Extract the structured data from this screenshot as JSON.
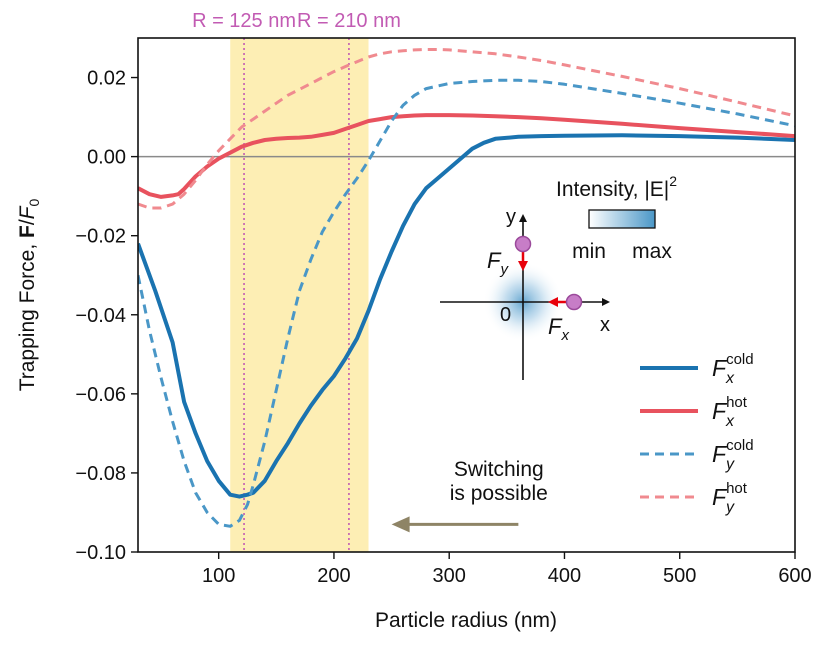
{
  "chart_data": {
    "type": "line",
    "xlabel": "Particle radius (nm)",
    "ylabel": "Trapping Force, F/F0",
    "ylabel_parts": {
      "prefix": "Trapping Force, ",
      "bold": "F",
      "slash": "/",
      "base": "F",
      "sub": "0"
    },
    "xlim": [
      30,
      600
    ],
    "ylim": [
      -0.1,
      0.03
    ],
    "x_ticks": [
      100,
      200,
      300,
      400,
      500,
      600
    ],
    "x_tick_labels": [
      "100",
      "200",
      "300",
      "400",
      "500",
      "600"
    ],
    "y_ticks": [
      0.02,
      0.0,
      -0.02,
      -0.04,
      -0.06,
      -0.08,
      -0.1
    ],
    "y_tick_labels": [
      "0.02",
      "0.00",
      "−0.02",
      "−0.04",
      "−0.06",
      "−0.08",
      "−0.10"
    ],
    "shaded_region": {
      "x_start": 110,
      "x_end": 230,
      "color": "#fdeeb4"
    },
    "markers": [
      {
        "x": 122,
        "label": "R = 125 nm",
        "color": "#c25bb3"
      },
      {
        "x": 213,
        "label": "R = 210 nm",
        "color": "#c25bb3"
      }
    ],
    "zero_line": 0.0,
    "series": [
      {
        "name": "Fx cold",
        "symbol": "F",
        "sub": "x",
        "sup": "cold",
        "color": "#1a73b0",
        "style": "solid",
        "width": 4,
        "x": [
          30,
          45,
          60,
          70,
          80,
          90,
          100,
          110,
          118,
          125,
          130,
          140,
          150,
          160,
          170,
          180,
          190,
          200,
          210,
          220,
          230,
          240,
          250,
          260,
          270,
          280,
          290,
          300,
          310,
          320,
          330,
          340,
          360,
          380,
          400,
          450,
          500,
          550,
          600
        ],
        "y": [
          -0.022,
          -0.034,
          -0.047,
          -0.062,
          -0.07,
          -0.077,
          -0.082,
          -0.0855,
          -0.086,
          -0.0855,
          -0.085,
          -0.082,
          -0.077,
          -0.0725,
          -0.0675,
          -0.063,
          -0.059,
          -0.0555,
          -0.051,
          -0.046,
          -0.039,
          -0.031,
          -0.024,
          -0.0175,
          -0.012,
          -0.008,
          -0.0055,
          -0.003,
          -0.0005,
          0.002,
          0.0035,
          0.0045,
          0.005,
          0.0052,
          0.0053,
          0.0054,
          0.0052,
          0.0048,
          0.0042
        ]
      },
      {
        "name": "Fx hot",
        "symbol": "F",
        "sub": "x",
        "sup": "hot",
        "color": "#e8525e",
        "style": "solid",
        "width": 4,
        "x": [
          30,
          40,
          50,
          60,
          65,
          70,
          80,
          90,
          100,
          110,
          120,
          130,
          140,
          150,
          160,
          170,
          180,
          190,
          200,
          210,
          220,
          230,
          240,
          250,
          260,
          270,
          280,
          290,
          300,
          320,
          340,
          360,
          380,
          400,
          450,
          500,
          550,
          600
        ],
        "y": [
          -0.008,
          -0.0095,
          -0.0102,
          -0.0098,
          -0.0095,
          -0.0082,
          -0.005,
          -0.0025,
          -0.0005,
          0.001,
          0.0025,
          0.0035,
          0.0042,
          0.0045,
          0.0047,
          0.0048,
          0.005,
          0.0055,
          0.006,
          0.007,
          0.008,
          0.009,
          0.0095,
          0.01,
          0.0102,
          0.0104,
          0.0105,
          0.0105,
          0.0105,
          0.0104,
          0.0102,
          0.01,
          0.0097,
          0.0093,
          0.0083,
          0.0072,
          0.0062,
          0.0052
        ]
      },
      {
        "name": "Fy cold",
        "symbol": "F",
        "sub": "y",
        "sup": "cold",
        "color": "#4a97c7",
        "style": "dashed",
        "width": 3,
        "x": [
          30,
          40,
          50,
          60,
          70,
          80,
          90,
          100,
          110,
          118,
          125,
          130,
          140,
          150,
          160,
          170,
          180,
          190,
          200,
          210,
          220,
          230,
          240,
          250,
          260,
          270,
          280,
          300,
          320,
          340,
          360,
          380,
          400,
          450,
          500,
          550,
          600
        ],
        "y": [
          -0.03,
          -0.044,
          -0.056,
          -0.067,
          -0.077,
          -0.085,
          -0.09,
          -0.093,
          -0.0935,
          -0.092,
          -0.088,
          -0.083,
          -0.072,
          -0.059,
          -0.046,
          -0.034,
          -0.026,
          -0.019,
          -0.014,
          -0.0095,
          -0.0055,
          -0.001,
          0.004,
          0.009,
          0.013,
          0.0155,
          0.0172,
          0.0185,
          0.019,
          0.0193,
          0.0193,
          0.019,
          0.0183,
          0.016,
          0.0135,
          0.0108,
          0.0078
        ]
      },
      {
        "name": "Fy hot",
        "symbol": "F",
        "sub": "y",
        "sup": "hot",
        "color": "#f08a8f",
        "style": "dashed",
        "width": 3,
        "x": [
          30,
          40,
          50,
          60,
          70,
          80,
          90,
          100,
          110,
          120,
          130,
          140,
          150,
          160,
          170,
          180,
          190,
          200,
          210,
          220,
          230,
          240,
          250,
          260,
          270,
          280,
          290,
          300,
          320,
          340,
          360,
          380,
          400,
          450,
          500,
          550,
          600
        ],
        "y": [
          -0.012,
          -0.013,
          -0.013,
          -0.012,
          -0.0095,
          -0.006,
          -0.002,
          0.0015,
          0.0045,
          0.0075,
          0.0095,
          0.0115,
          0.0135,
          0.0155,
          0.017,
          0.0185,
          0.02,
          0.0215,
          0.0228,
          0.024,
          0.0252,
          0.026,
          0.0265,
          0.0268,
          0.027,
          0.0271,
          0.0271,
          0.027,
          0.0265,
          0.026,
          0.0252,
          0.0243,
          0.0232,
          0.0203,
          0.0172,
          0.0138,
          0.0103
        ]
      }
    ],
    "annotation": {
      "lines": [
        "Switching",
        "is possible"
      ],
      "color": "#8e8466",
      "arrow_from_x": 360,
      "arrow_to_x": 250,
      "arrow_y": -0.093
    }
  },
  "inset": {
    "intensity_label": "Intensity, |E|",
    "intensity_exp": "2",
    "colorbar_min": "min",
    "colorbar_max": "max",
    "axis_y": "y",
    "axis_x": "x",
    "origin": "0",
    "force_y_label": "F",
    "force_y_sub": "y",
    "force_x_label": "F",
    "force_x_sub": "x"
  }
}
